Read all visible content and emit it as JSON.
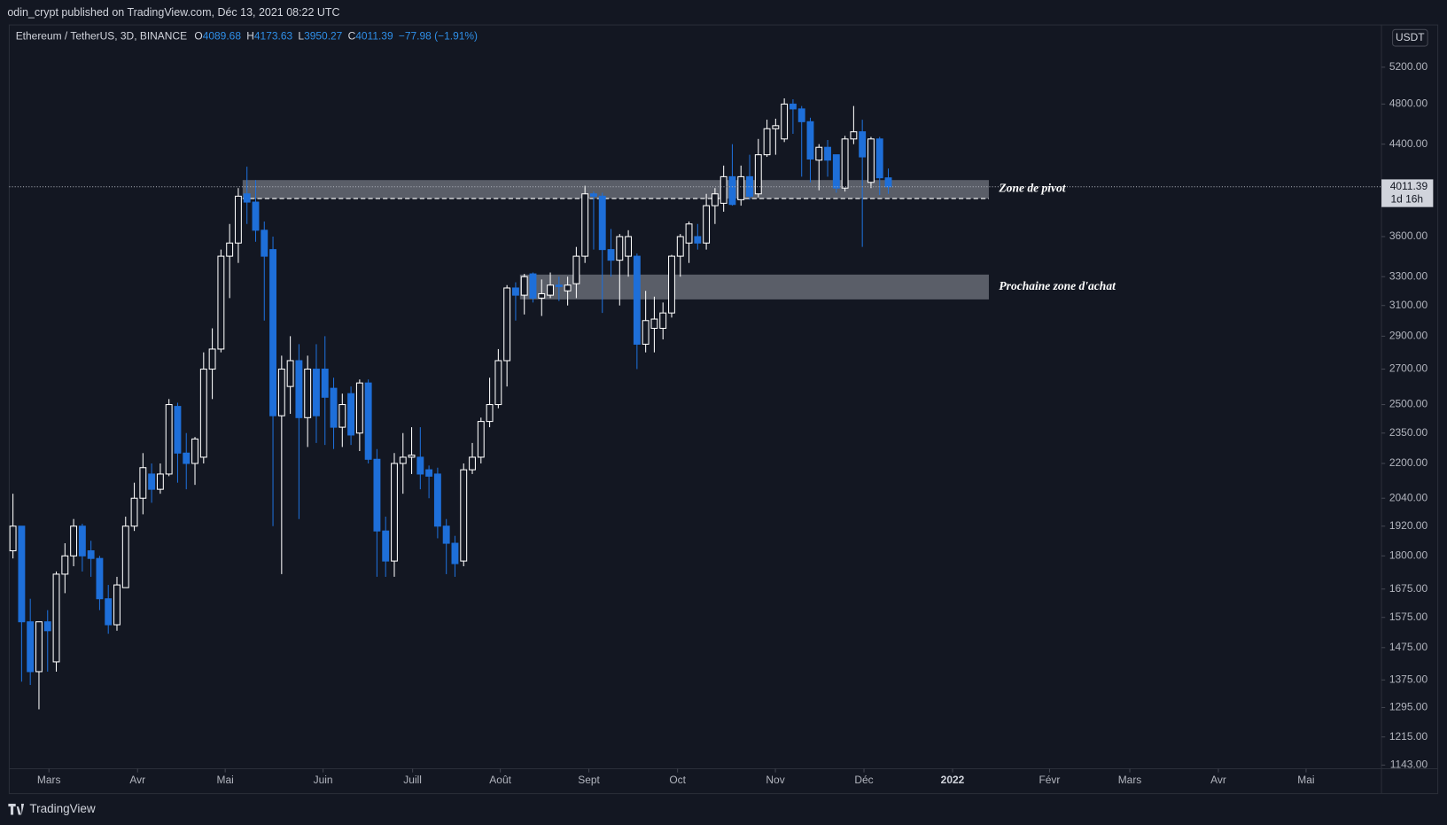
{
  "header": {
    "byline": "odin_crypt published on TradingView.com, Déc 13, 2021 08:22 UTC",
    "footer": "TradingView"
  },
  "chart_data": {
    "type": "candlestick",
    "symbol": "Ethereum / TetherUS, 3D, BINANCE",
    "ohlc_labels": [
      "O",
      "H",
      "L",
      "C"
    ],
    "change": "−77.98 (−1.91%)",
    "currency": "USDT",
    "countdown": "1d 16h",
    "up_color": "#ffffff",
    "down_color": "#1e6fd9",
    "log_scale": true,
    "open": [
      1820,
      1920,
      1560,
      1400,
      1560,
      1430,
      1730,
      1800,
      1920,
      1820,
      1790,
      1640,
      1550,
      1680,
      1920,
      2040,
      2150,
      2080,
      2150,
      2490,
      2250,
      2200,
      2230,
      2700,
      2820,
      3450,
      3550,
      3950,
      3880,
      3650,
      3500,
      2440,
      2600,
      2750,
      2430,
      2700,
      2700,
      2590,
      2380,
      2560,
      2350,
      2620,
      2220,
      1900,
      1780,
      2200,
      2230,
      2230,
      2170,
      2150,
      1920,
      1850,
      1780,
      2170,
      2230,
      2410,
      2500,
      2750,
      3220,
      3170,
      3320,
      3150,
      3170,
      3240,
      3200,
      3250,
      3450,
      3950,
      3930,
      3500,
      3420,
      3450,
      3450,
      2850,
      2950,
      2950,
      3050,
      3450,
      3550,
      3600,
      3550,
      3850,
      3870,
      4100,
      3900,
      4100,
      3950,
      4300,
      4550,
      4450,
      4800,
      4750,
      4620,
      4250,
      4370,
      4300,
      4000,
      4450,
      4520,
      4050,
      4450,
      4089.68
    ],
    "high": [
      2060,
      1920,
      1640,
      1560,
      1600,
      1740,
      1850,
      1950,
      1930,
      1860,
      1800,
      1690,
      1720,
      1960,
      2110,
      2250,
      2200,
      2200,
      2530,
      2510,
      2350,
      2330,
      2800,
      2950,
      3500,
      3700,
      4000,
      4190,
      4070,
      3720,
      3600,
      2780,
      2900,
      2850,
      2780,
      2850,
      2900,
      2650,
      2560,
      2600,
      2640,
      2640,
      2270,
      1960,
      2250,
      2350,
      2380,
      2380,
      2190,
      2180,
      1950,
      1880,
      2200,
      2300,
      2430,
      2650,
      2820,
      3240,
      3260,
      3320,
      3330,
      3280,
      3330,
      3300,
      3300,
      3520,
      4020,
      3970,
      3960,
      3660,
      3620,
      3650,
      3470,
      3200,
      3160,
      3120,
      3460,
      3620,
      3720,
      3700,
      3950,
      4000,
      4200,
      4400,
      4200,
      4300,
      4450,
      4640,
      4650,
      4860,
      4850,
      4780,
      4660,
      4400,
      4440,
      4300,
      4480,
      4780,
      4640,
      4470,
      4470,
      4173.63
    ],
    "low": [
      1790,
      1370,
      1360,
      1290,
      1400,
      1400,
      1660,
      1760,
      1740,
      1720,
      1600,
      1520,
      1530,
      1680,
      1900,
      1970,
      2020,
      2060,
      2140,
      2110,
      2080,
      2100,
      2200,
      2530,
      2800,
      3150,
      3400,
      3700,
      3560,
      3000,
      1920,
      1730,
      2450,
      1950,
      2280,
      2300,
      2290,
      2270,
      2280,
      2290,
      2260,
      2200,
      1720,
      1720,
      1720,
      2060,
      2150,
      2080,
      2040,
      1870,
      1730,
      1720,
      1760,
      2150,
      2200,
      2380,
      2480,
      2600,
      3000,
      3040,
      3120,
      3030,
      3150,
      3130,
      3100,
      3150,
      3400,
      3500,
      3050,
      3300,
      3100,
      3300,
      2700,
      2800,
      2800,
      2880,
      3020,
      3300,
      3400,
      3500,
      3500,
      3700,
      3800,
      3850,
      3850,
      3900,
      3920,
      4280,
      4300,
      4420,
      4500,
      4100,
      4050,
      3980,
      4100,
      3960,
      3970,
      4400,
      3520,
      4000,
      3940,
      3950.27
    ],
    "close": [
      1920,
      1560,
      1400,
      1560,
      1530,
      1730,
      1800,
      1920,
      1800,
      1790,
      1640,
      1550,
      1690,
      1920,
      2040,
      2180,
      2080,
      2150,
      2500,
      2250,
      2200,
      2320,
      2700,
      2820,
      3450,
      3550,
      3930,
      3880,
      3650,
      3450,
      2440,
      2700,
      2750,
      2430,
      2700,
      2440,
      2540,
      2380,
      2500,
      2340,
      2620,
      2220,
      1900,
      1780,
      2200,
      2230,
      2240,
      2150,
      2140,
      1920,
      1850,
      1770,
      2170,
      2230,
      2410,
      2500,
      2750,
      3220,
      3170,
      3300,
      3150,
      3180,
      3240,
      3230,
      3240,
      3450,
      3950,
      3930,
      3500,
      3420,
      3600,
      3600,
      2850,
      3000,
      3010,
      3050,
      3450,
      3600,
      3700,
      3550,
      3850,
      3950,
      4100,
      3860,
      4100,
      3930,
      4300,
      4550,
      4580,
      4800,
      4750,
      4620,
      4260,
      4370,
      4250,
      4000,
      4450,
      4520,
      4280,
      4450,
      4090,
      4011.39
    ],
    "ylim": [
      1134,
      5700
    ],
    "yticks": [
      {
        "value": 5200,
        "label": "5200.00"
      },
      {
        "value": 4800,
        "label": "4800.00"
      },
      {
        "value": 4400,
        "label": "4400.00"
      },
      {
        "value": 3600,
        "label": "3600.00"
      },
      {
        "value": 3300,
        "label": "3300.00"
      },
      {
        "value": 3100,
        "label": "3100.00"
      },
      {
        "value": 2900,
        "label": "2900.00"
      },
      {
        "value": 2700,
        "label": "2700.00"
      },
      {
        "value": 2500,
        "label": "2500.00"
      },
      {
        "value": 2350,
        "label": "2350.00"
      },
      {
        "value": 2200,
        "label": "2200.00"
      },
      {
        "value": 2040,
        "label": "2040.00"
      },
      {
        "value": 1920,
        "label": "1920.00"
      },
      {
        "value": 1800,
        "label": "1800.00"
      },
      {
        "value": 1675,
        "label": "1675.00"
      },
      {
        "value": 1575,
        "label": "1575.00"
      },
      {
        "value": 1475,
        "label": "1475.00"
      },
      {
        "value": 1375,
        "label": "1375.00"
      },
      {
        "value": 1295,
        "label": "1295.00"
      },
      {
        "value": 1215,
        "label": "1215.00"
      },
      {
        "value": 1143,
        "label": "1143.00"
      }
    ],
    "xlim": [
      -0.43,
      157.9
    ],
    "xticks": [
      {
        "value": 4.15,
        "label": "Mars"
      },
      {
        "value": 14.38,
        "label": "Avr"
      },
      {
        "value": 24.49,
        "label": "Mai"
      },
      {
        "value": 35.78,
        "label": "Juin"
      },
      {
        "value": 46.11,
        "label": "Juill"
      },
      {
        "value": 56.23,
        "label": "Août"
      },
      {
        "value": 66.45,
        "label": "Sept"
      },
      {
        "value": 76.68,
        "label": "Oct"
      },
      {
        "value": 87.97,
        "label": "Nov"
      },
      {
        "value": 98.19,
        "label": "Déc"
      },
      {
        "value": 108.41,
        "label": "2022",
        "bold": true
      },
      {
        "value": 119.6,
        "label": "Févr"
      },
      {
        "value": 128.86,
        "label": "Mars"
      },
      {
        "value": 139.08,
        "label": "Avr"
      },
      {
        "value": 149.2,
        "label": "Mai"
      }
    ],
    "zones": [
      {
        "label": "Zone de pivot",
        "top": 4070,
        "bottom": 3910,
        "start": 26.5,
        "end": 112.6,
        "dashed": true
      },
      {
        "label": "Prochaine zone d'achat",
        "top": 3315,
        "bottom": 3141,
        "start": 58.5,
        "end": 112.6,
        "dashed": false
      }
    ]
  }
}
